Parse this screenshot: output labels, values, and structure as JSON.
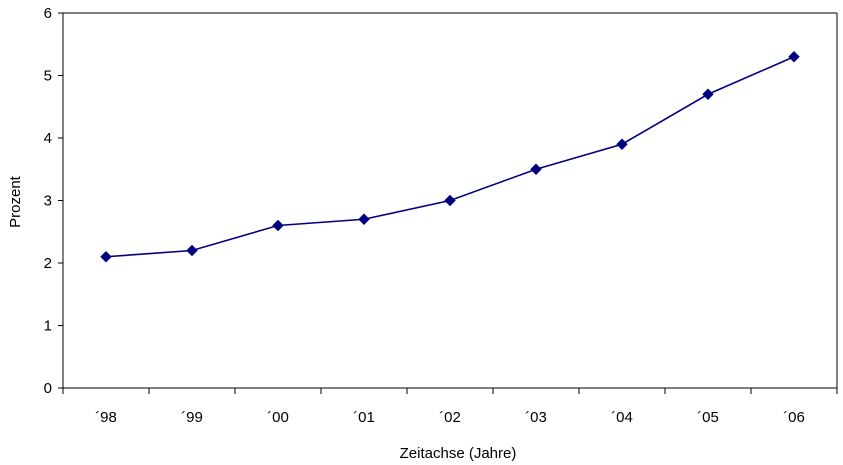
{
  "chart_data": {
    "type": "line",
    "title": "",
    "xlabel": "Zeitachse (Jahre)",
    "ylabel": "Prozent",
    "categories": [
      "´98",
      "´99",
      "´00",
      "´01",
      "´02",
      "´03",
      "´04",
      "´05",
      "´06"
    ],
    "series": [
      {
        "values": [
          2.1,
          2.2,
          2.6,
          2.7,
          3.0,
          3.5,
          3.9,
          4.7,
          5.3
        ]
      }
    ],
    "ylim": [
      0,
      6
    ],
    "yticks": [
      0,
      1,
      2,
      3,
      4,
      5,
      6
    ],
    "grid": false,
    "marker": "diamond",
    "colors": {
      "line": "#000080",
      "axis": "#000000",
      "frame": "#000000"
    }
  }
}
